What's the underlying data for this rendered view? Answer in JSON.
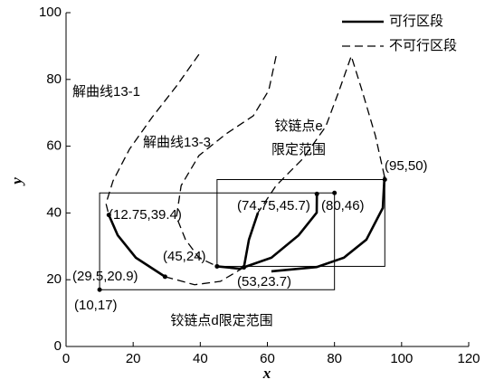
{
  "chart_data": {
    "type": "line",
    "xlim": [
      0,
      120
    ],
    "ylim": [
      0,
      100
    ],
    "xticks": [
      0,
      20,
      40,
      60,
      80,
      100,
      120
    ],
    "yticks": [
      0,
      20,
      40,
      60,
      80,
      100
    ],
    "xlabel": "x",
    "ylabel": "y",
    "color": "#000000",
    "legend_position": "top-right",
    "legend": [
      {
        "name": "可行区段",
        "dashed": false
      },
      {
        "name": "不可行区段",
        "dashed": true
      }
    ],
    "series": [
      {
        "name": "解曲线13-1",
        "segments": [
          {
            "feasible": false,
            "x": [
              39.6,
              32.9,
              25.6,
              18.9,
              14,
              11.9,
              12.75
            ],
            "y": [
              87.5,
              78,
              68.6,
              59.1,
              49.6,
              42.8,
              39.4
            ]
          },
          {
            "feasible": true,
            "x": [
              12.75,
              15.4,
              20.8,
              29.5
            ],
            "y": [
              39.4,
              33.3,
              26.6,
              20.9
            ]
          },
          {
            "feasible": false,
            "x": [
              29.5,
              38.3,
              46,
              53
            ],
            "y": [
              20.9,
              18.5,
              19.5,
              23.7
            ]
          }
        ]
      },
      {
        "name": "解曲线13-3",
        "segments": [
          {
            "feasible": false,
            "x": [
              62.6,
              60.4,
              55.8,
              47.7,
              39.6,
              34.3,
              32.9,
              35.6,
              39.6,
              45
            ],
            "y": [
              87,
              76.7,
              69.1,
              63.7,
              57.2,
              48.2,
              38.8,
              32,
              26.6,
              24
            ]
          },
          {
            "feasible": true,
            "x": [
              45,
              51.8,
              61.2,
              69.3,
              74.7,
              74.75
            ],
            "y": [
              24,
              23.3,
              26.6,
              33.3,
              40.1,
              45.7
            ]
          }
        ]
      },
      {
        "segments": [
          {
            "feasible": false,
            "x": [
              94.9,
              92.2,
              88.2,
              85,
              81.4,
              77.4,
              70.7,
              62.6,
              57.2
            ],
            "y": [
              50.9,
              63.1,
              76.7,
              87,
              76.7,
              65.9,
              56.4,
              48.2,
              40.1
            ]
          },
          {
            "feasible": true,
            "x": [
              57.2,
              54.5,
              53
            ],
            "y": [
              40.1,
              32,
              23.7
            ]
          },
          {
            "feasible": true,
            "x": [
              94.9,
              94.4,
              89.5,
              82.8,
              74.7,
              61.2
            ],
            "y": [
              50.9,
              41.5,
              32,
              26.6,
              23.8,
              22.5
            ]
          }
        ]
      }
    ],
    "regions": [
      {
        "label": "铰链点d限定范围",
        "xlim": [
          10,
          80
        ],
        "ylim": [
          17,
          46
        ]
      },
      {
        "label": [
          "铰链点e",
          "限定范围"
        ],
        "xlim": [
          45,
          95
        ],
        "ylim": [
          24,
          50
        ]
      }
    ],
    "points": [
      {
        "x": 12.75,
        "y": 39.4,
        "label": "(12.75,39.4)"
      },
      {
        "x": 29.5,
        "y": 20.9,
        "label": "(29.5,20.9)"
      },
      {
        "x": 10,
        "y": 17,
        "label": "(10,17)"
      },
      {
        "x": 45,
        "y": 24,
        "label": "(45,24)"
      },
      {
        "x": 53,
        "y": 23.7,
        "label": "(53,23.7)"
      },
      {
        "x": 74.75,
        "y": 45.7,
        "label": "(74.75,45.7)"
      },
      {
        "x": 80,
        "y": 46,
        "label": "(80,46)"
      },
      {
        "x": 95,
        "y": 50,
        "label": "(95,50)"
      }
    ]
  }
}
